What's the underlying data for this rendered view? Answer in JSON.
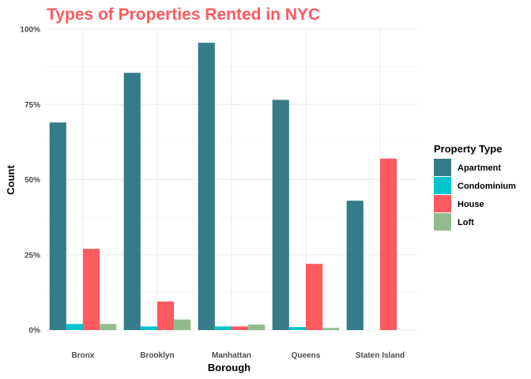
{
  "chart_data": {
    "type": "bar",
    "title": "Types of Properties Rented in NYC",
    "xlabel": "Borough",
    "ylabel": "Count",
    "categories": [
      "Bronx",
      "Brooklyn",
      "Manhattan",
      "Queens",
      "Staten Island"
    ],
    "series": [
      {
        "name": "Apartment",
        "color": "#367b89",
        "values": [
          0.69,
          0.855,
          0.955,
          0.765,
          0.43
        ]
      },
      {
        "name": "Condominium",
        "color": "#00c5cd",
        "values": [
          0.02,
          0.012,
          0.012,
          0.01,
          0
        ]
      },
      {
        "name": "House",
        "color": "#ff5a5f",
        "values": [
          0.27,
          0.095,
          0.012,
          0.22,
          0.57
        ]
      },
      {
        "name": "Loft",
        "color": "#8fbb8f",
        "values": [
          0.02,
          0.035,
          0.018,
          0.007,
          0
        ]
      }
    ],
    "ylim": [
      0,
      1
    ],
    "yticks": [
      {
        "value": 0,
        "label": "0%"
      },
      {
        "value": 0.25,
        "label": "25%"
      },
      {
        "value": 0.5,
        "label": "50%"
      },
      {
        "value": 0.75,
        "label": "75%"
      },
      {
        "value": 1,
        "label": "100%"
      }
    ],
    "legend": {
      "title": "Property Type",
      "position": "right"
    },
    "title_color": "#ff5a5f",
    "grid": true
  }
}
